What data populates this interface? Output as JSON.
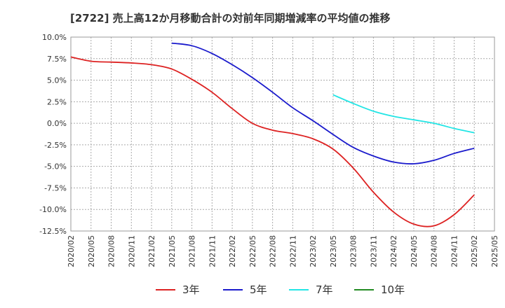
{
  "chart_data": {
    "type": "line",
    "title": "[2722]  売上高12か月移動合計の対前年同期増減率の平均値の推移",
    "xlabel": "",
    "ylabel": "",
    "ylim": [
      -12.5,
      10.0
    ],
    "grid": true,
    "legend_position": "bottom",
    "y_ticks": [
      "10.0%",
      "7.5%",
      "5.0%",
      "2.5%",
      "0.0%",
      "-2.5%",
      "-5.0%",
      "-7.5%",
      "-10.0%",
      "-12.5%"
    ],
    "y_tick_values": [
      10.0,
      7.5,
      5.0,
      2.5,
      0.0,
      -2.5,
      -5.0,
      -7.5,
      -10.0,
      -12.5
    ],
    "x_ticks": [
      "2020/02",
      "2020/05",
      "2020/08",
      "2020/11",
      "2021/02",
      "2021/05",
      "2021/08",
      "2021/11",
      "2022/02",
      "2022/05",
      "2022/08",
      "2022/11",
      "2023/02",
      "2023/05",
      "2023/08",
      "2023/11",
      "2024/02",
      "2024/05",
      "2024/08",
      "2024/11",
      "2025/02",
      "2025/05"
    ],
    "series": [
      {
        "name": "3年",
        "color": "#dd2222",
        "x": [
          "2020/02",
          "2020/05",
          "2020/08",
          "2020/11",
          "2021/02",
          "2021/05",
          "2021/08",
          "2021/11",
          "2022/02",
          "2022/05",
          "2022/08",
          "2022/11",
          "2023/02",
          "2023/05",
          "2023/08",
          "2023/11",
          "2024/02",
          "2024/05",
          "2024/08",
          "2024/11",
          "2025/02"
        ],
        "values": [
          7.7,
          7.2,
          7.1,
          7.0,
          6.8,
          6.3,
          5.1,
          3.6,
          1.7,
          0.0,
          -0.8,
          -1.2,
          -1.8,
          -3.0,
          -5.2,
          -8.0,
          -10.3,
          -11.7,
          -11.9,
          -10.6,
          -8.3
        ]
      },
      {
        "name": "5年",
        "color": "#1a1acc",
        "x": [
          "2021/05",
          "2021/08",
          "2021/11",
          "2022/02",
          "2022/05",
          "2022/08",
          "2022/11",
          "2023/02",
          "2023/05",
          "2023/08",
          "2023/11",
          "2024/02",
          "2024/05",
          "2024/08",
          "2024/11",
          "2025/02"
        ],
        "values": [
          9.3,
          9.0,
          8.1,
          6.8,
          5.3,
          3.6,
          1.8,
          0.3,
          -1.3,
          -2.8,
          -3.8,
          -4.5,
          -4.7,
          -4.3,
          -3.5,
          -2.9
        ]
      },
      {
        "name": "7年",
        "color": "#22e5e5",
        "x": [
          "2023/05",
          "2023/08",
          "2023/11",
          "2024/02",
          "2024/05",
          "2024/08",
          "2024/11",
          "2025/02"
        ],
        "values": [
          3.3,
          2.3,
          1.4,
          0.8,
          0.4,
          0.0,
          -0.6,
          -1.1
        ]
      },
      {
        "name": "10年",
        "color": "#228B22",
        "x": [],
        "values": []
      }
    ]
  }
}
